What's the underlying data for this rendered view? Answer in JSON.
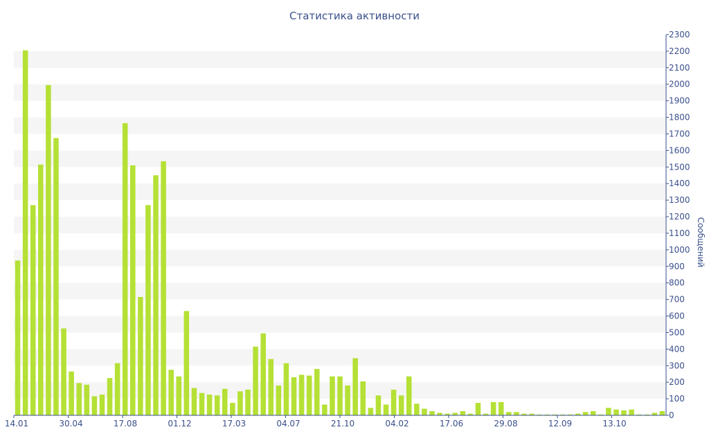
{
  "chart_data": {
    "type": "bar",
    "title": "Статистика активности",
    "ylabel": "Сообщений",
    "xlabel": "",
    "ylim": [
      0,
      2300
    ],
    "y_ticks": [
      0,
      100,
      200,
      300,
      400,
      500,
      600,
      700,
      800,
      900,
      1000,
      1100,
      1200,
      1300,
      1400,
      1500,
      1600,
      1700,
      1800,
      1900,
      2000,
      2100,
      2200,
      2300
    ],
    "x_tick_labels": [
      {
        "label": "14.01",
        "index": 0
      },
      {
        "label": "30.04",
        "index": 7
      },
      {
        "label": "17.08",
        "index": 14
      },
      {
        "label": "01.12",
        "index": 21
      },
      {
        "label": "17.03",
        "index": 28
      },
      {
        "label": "04.07",
        "index": 35
      },
      {
        "label": "21.10",
        "index": 42
      },
      {
        "label": "04.02",
        "index": 49
      },
      {
        "label": "17.06",
        "index": 56
      },
      {
        "label": "29.08",
        "index": 63
      },
      {
        "label": "12.09",
        "index": 70
      },
      {
        "label": "13.10",
        "index": 77
      }
    ],
    "grid": "horizontal bands",
    "bar_color": "#b5e035",
    "values": [
      935,
      2205,
      1270,
      1515,
      1995,
      1675,
      525,
      265,
      195,
      185,
      115,
      125,
      225,
      315,
      1765,
      1510,
      715,
      1270,
      1450,
      1535,
      275,
      235,
      630,
      165,
      135,
      125,
      120,
      160,
      75,
      145,
      155,
      415,
      495,
      340,
      180,
      315,
      230,
      245,
      240,
      280,
      65,
      235,
      235,
      180,
      345,
      205,
      45,
      120,
      65,
      155,
      120,
      235,
      70,
      40,
      25,
      15,
      10,
      15,
      25,
      10,
      75,
      10,
      80,
      80,
      20,
      20,
      10,
      10,
      5,
      5,
      5,
      5,
      5,
      10,
      20,
      25,
      5,
      45,
      35,
      30,
      35,
      5,
      5,
      15,
      25
    ]
  }
}
